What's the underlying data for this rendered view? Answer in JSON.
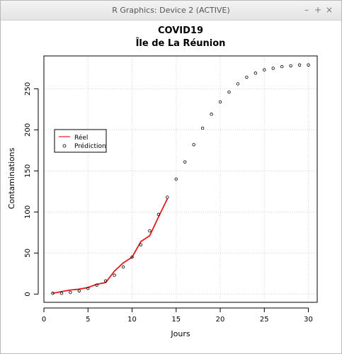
{
  "window": {
    "title": "R Graphics: Device 2 (ACTIVE)",
    "controls": {
      "minimize": "–",
      "maximize": "+",
      "close": "×"
    }
  },
  "chart_data": {
    "type": "line",
    "title": "COVID19",
    "subtitle": "Île de La Réunion",
    "xlabel": "Jours",
    "ylabel": "Contaminations",
    "xlim": [
      0,
      31
    ],
    "ylim": [
      -10,
      290
    ],
    "xticks": [
      0,
      5,
      10,
      15,
      20,
      25,
      30
    ],
    "yticks": [
      0,
      50,
      100,
      150,
      200,
      250
    ],
    "grid": true,
    "legend_position": "left",
    "series": [
      {
        "name": "Réel",
        "style": "line",
        "color": "#e41a1c",
        "x": [
          1,
          2,
          3,
          4,
          5,
          6,
          7,
          8,
          9,
          10,
          11,
          12,
          13,
          14
        ],
        "y": [
          1,
          3,
          5,
          6,
          8,
          12,
          14,
          28,
          38,
          45,
          64,
          71,
          94,
          116
        ]
      },
      {
        "name": "Prédiction",
        "style": "points",
        "color": "#000000",
        "x": [
          1,
          2,
          3,
          4,
          5,
          6,
          7,
          8,
          9,
          10,
          11,
          12,
          13,
          14,
          15,
          16,
          17,
          18,
          19,
          20,
          21,
          22,
          23,
          24,
          25,
          26,
          27,
          28,
          29,
          30
        ],
        "y": [
          1,
          1,
          2,
          4,
          7,
          11,
          16,
          23,
          33,
          45,
          60,
          77,
          97,
          118,
          140,
          161,
          182,
          202,
          219,
          234,
          246,
          256,
          264,
          269,
          273,
          275,
          277,
          278,
          279,
          279
        ]
      }
    ]
  }
}
